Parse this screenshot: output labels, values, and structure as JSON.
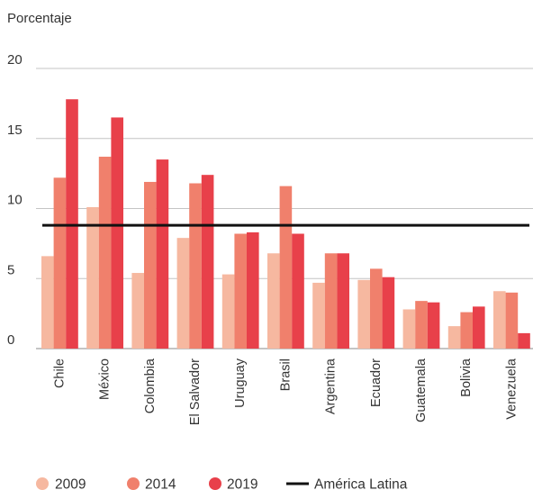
{
  "chart_data": {
    "type": "bar",
    "ylabel": "Porcentaje",
    "xlabel": "",
    "ylim": [
      0,
      20
    ],
    "yticks": [
      0,
      5,
      10,
      15,
      20
    ],
    "grid": true,
    "legend_position": "bottom",
    "categories": [
      "Chile",
      "México",
      "Colombia",
      "El Salvador",
      "Uruguay",
      "Brasil",
      "Argentina",
      "Ecuador",
      "Guatemala",
      "Bolivia",
      "Venezuela"
    ],
    "series": [
      {
        "name": "2009",
        "color": "#f6b8a0",
        "values": [
          6.6,
          10.1,
          5.4,
          7.9,
          5.3,
          6.8,
          4.7,
          4.9,
          2.8,
          1.6,
          4.1
        ]
      },
      {
        "name": "2014",
        "color": "#f0806c",
        "values": [
          12.2,
          13.7,
          11.9,
          11.8,
          8.2,
          11.6,
          6.8,
          5.7,
          3.4,
          2.6,
          4.0
        ]
      },
      {
        "name": "2019",
        "color": "#e8404a",
        "values": [
          17.8,
          16.5,
          13.5,
          12.4,
          8.3,
          8.2,
          6.8,
          5.1,
          3.3,
          3.0,
          1.1
        ]
      }
    ],
    "reference_line": {
      "name": "América Latina",
      "value": 8.8,
      "color": "#111111"
    }
  }
}
